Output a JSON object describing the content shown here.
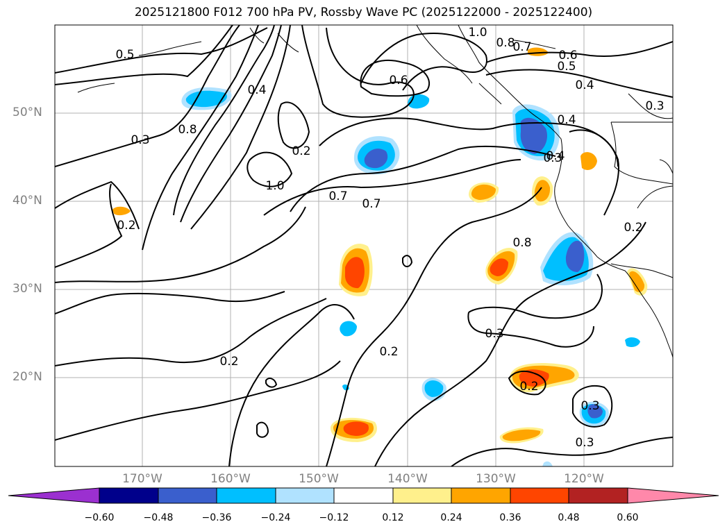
{
  "title": "2025121800 F012 700 hPa PV, Rossby Wave PC (2025122000 - 2025122400)",
  "latitude_labels": [
    "50°N",
    "40°N",
    "30°N",
    "20°N"
  ],
  "longitude_labels": [
    "170°W",
    "160°W",
    "150°W",
    "140°W",
    "130°W",
    "120°W"
  ],
  "colorbar": {
    "tick_labels": [
      "−0.60",
      "−0.48",
      "−0.36",
      "−0.24",
      "−0.12",
      "0.12",
      "0.24",
      "0.36",
      "0.48",
      "0.60"
    ],
    "colors": [
      "#9b30d0",
      "#00008b",
      "#3a5fcd",
      "#00bfff",
      "#b0e2ff",
      "#ffffff",
      "#fff08c",
      "#ffa500",
      "#ff4500",
      "#b22222",
      "#ff88aa"
    ]
  },
  "contour_labels": [
    "1.0",
    "0.8",
    "0.7",
    "0.6",
    "0.5",
    "0.4",
    "0.3",
    "0.2",
    "1.0",
    "0.7",
    "0.7",
    "0.6",
    "0.4",
    "0.8",
    "0.3",
    "0.2",
    "0.4",
    "0.4",
    "0.8",
    "0.2",
    "0.3",
    "0.2",
    "0.3",
    "0.3",
    "0.2",
    "0.2",
    "0.3",
    "0.8",
    "0.5"
  ]
}
